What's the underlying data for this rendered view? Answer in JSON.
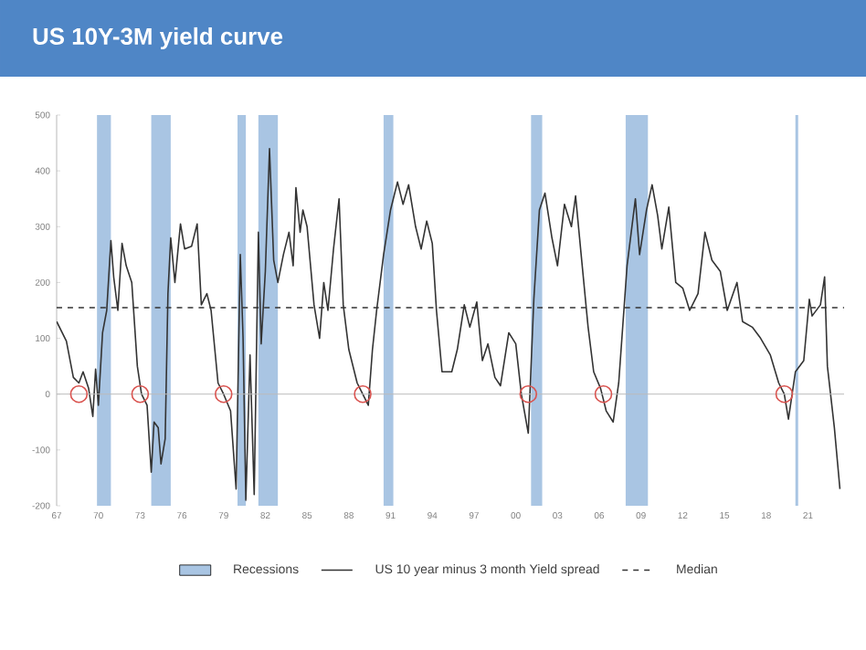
{
  "chart_data": {
    "type": "line",
    "title": "US 10Y-3M yield curve",
    "xlim": [
      1967,
      2023.6
    ],
    "ylim": [
      -200,
      500
    ],
    "xticks": [
      {
        "value": 1967,
        "label": "67"
      },
      {
        "value": 1970,
        "label": "70"
      },
      {
        "value": 1973,
        "label": "73"
      },
      {
        "value": 1976,
        "label": "76"
      },
      {
        "value": 1979,
        "label": "79"
      },
      {
        "value": 1982,
        "label": "82"
      },
      {
        "value": 1985,
        "label": "85"
      },
      {
        "value": 1988,
        "label": "88"
      },
      {
        "value": 1991,
        "label": "91"
      },
      {
        "value": 1994,
        "label": "94"
      },
      {
        "value": 1997,
        "label": "97"
      },
      {
        "value": 2000,
        "label": "00"
      },
      {
        "value": 2003,
        "label": "03"
      },
      {
        "value": 2006,
        "label": "06"
      },
      {
        "value": 2009,
        "label": "09"
      },
      {
        "value": 2012,
        "label": "12"
      },
      {
        "value": 2015,
        "label": "15"
      },
      {
        "value": 2018,
        "label": "18"
      },
      {
        "value": 2021,
        "label": "21"
      }
    ],
    "yticks": [
      -200,
      -100,
      0,
      100,
      200,
      300,
      400,
      500
    ],
    "grid": false,
    "legend": "bottom",
    "series": [
      {
        "name": "US 10 year minus 3 month Yield spread",
        "color": "#333333",
        "marker": "none",
        "line_style": "solid",
        "x": [
          1967.0,
          1967.7,
          1968.2,
          1968.6,
          1968.9,
          1969.3,
          1969.6,
          1969.8,
          1970.0,
          1970.3,
          1970.6,
          1970.9,
          1971.1,
          1971.4,
          1971.7,
          1972.0,
          1972.4,
          1972.8,
          1973.1,
          1973.5,
          1973.8,
          1974.0,
          1974.3,
          1974.5,
          1974.8,
          1975.0,
          1975.2,
          1975.5,
          1975.9,
          1976.2,
          1976.7,
          1977.1,
          1977.4,
          1977.8,
          1978.1,
          1978.6,
          1979.0,
          1979.5,
          1979.9,
          1980.2,
          1980.4,
          1980.6,
          1980.9,
          1981.2,
          1981.5,
          1981.7,
          1982.0,
          1982.3,
          1982.6,
          1982.9,
          1983.3,
          1983.7,
          1984.0,
          1984.2,
          1984.5,
          1984.7,
          1985.0,
          1985.5,
          1985.9,
          1986.2,
          1986.5,
          1986.9,
          1987.3,
          1987.6,
          1988.0,
          1988.6,
          1989.0,
          1989.4,
          1989.7,
          1990.0,
          1990.5,
          1991.0,
          1991.5,
          1991.9,
          1992.3,
          1992.8,
          1993.2,
          1993.6,
          1994.0,
          1994.3,
          1994.7,
          1995.4,
          1995.8,
          1996.3,
          1996.7,
          1997.2,
          1997.6,
          1998.0,
          1998.5,
          1998.9,
          1999.5,
          2000.0,
          2000.4,
          2000.9,
          2001.3,
          2001.7,
          2002.1,
          2002.6,
          2003.0,
          2003.5,
          2004.0,
          2004.3,
          2004.7,
          2005.2,
          2005.6,
          2006.1,
          2006.5,
          2007.0,
          2007.4,
          2008.0,
          2008.6,
          2008.9,
          2009.4,
          2009.8,
          2010.2,
          2010.5,
          2011.0,
          2011.5,
          2012.0,
          2012.5,
          2013.1,
          2013.6,
          2014.1,
          2014.7,
          2015.2,
          2015.9,
          2016.3,
          2017.0,
          2017.6,
          2018.3,
          2018.9,
          2019.3,
          2019.6,
          2020.1,
          2020.7,
          2021.1,
          2021.3,
          2021.9,
          2022.2,
          2022.4,
          2022.9,
          2023.3
        ],
        "values": [
          130,
          95,
          30,
          20,
          40,
          10,
          -40,
          45,
          -20,
          110,
          150,
          275,
          210,
          150,
          270,
          230,
          200,
          50,
          0,
          -20,
          -140,
          -50,
          -60,
          -125,
          -80,
          180,
          280,
          200,
          305,
          260,
          265,
          305,
          160,
          180,
          150,
          20,
          0,
          -30,
          -170,
          250,
          100,
          -190,
          70,
          -180,
          290,
          90,
          220,
          440,
          240,
          200,
          250,
          290,
          230,
          370,
          290,
          330,
          300,
          160,
          100,
          200,
          150,
          260,
          350,
          160,
          80,
          20,
          0,
          -20,
          80,
          150,
          250,
          330,
          380,
          340,
          375,
          300,
          260,
          310,
          270,
          150,
          40,
          40,
          80,
          160,
          120,
          165,
          60,
          90,
          30,
          15,
          110,
          90,
          0,
          -70,
          170,
          330,
          360,
          280,
          230,
          340,
          300,
          355,
          250,
          120,
          40,
          10,
          -30,
          -50,
          20,
          230,
          350,
          250,
          330,
          375,
          320,
          260,
          335,
          200,
          190,
          150,
          180,
          290,
          240,
          220,
          150,
          200,
          130,
          120,
          100,
          70,
          20,
          0,
          -45,
          40,
          60,
          170,
          140,
          160,
          210,
          50,
          -60,
          -170
        ]
      },
      {
        "type": "scatter",
        "color": "#d9534f",
        "marker": "circle",
        "x": [
          1968.6,
          1973.0,
          1979.0,
          1989.0,
          2000.9,
          2006.3,
          2019.3
        ],
        "values": [
          0,
          0,
          0,
          0,
          0,
          0,
          0
        ]
      }
    ],
    "ref_lines": [
      {
        "axis": "y",
        "value": 0,
        "color": "#bbbbbb",
        "line_style": "solid"
      },
      {
        "axis": "y",
        "value": 155,
        "label": "Median",
        "color": "#333333",
        "line_style": "dashed"
      }
    ],
    "bands": [
      {
        "axis": "x",
        "from": 1969.9,
        "to": 1970.9,
        "label": "Recessions",
        "color": "#a9c5e3"
      },
      {
        "axis": "x",
        "from": 1973.8,
        "to": 1975.2,
        "color": "#a9c5e3"
      },
      {
        "axis": "x",
        "from": 1980.0,
        "to": 1980.6,
        "color": "#a9c5e3"
      },
      {
        "axis": "x",
        "from": 1981.5,
        "to": 1982.9,
        "color": "#a9c5e3"
      },
      {
        "axis": "x",
        "from": 1990.5,
        "to": 1991.2,
        "color": "#a9c5e3"
      },
      {
        "axis": "x",
        "from": 2001.1,
        "to": 2001.9,
        "color": "#a9c5e3"
      },
      {
        "axis": "x",
        "from": 2007.9,
        "to": 2009.5,
        "color": "#a9c5e3"
      },
      {
        "axis": "x",
        "from": 2020.1,
        "to": 2020.3,
        "color": "#a9c5e3"
      }
    ]
  }
}
